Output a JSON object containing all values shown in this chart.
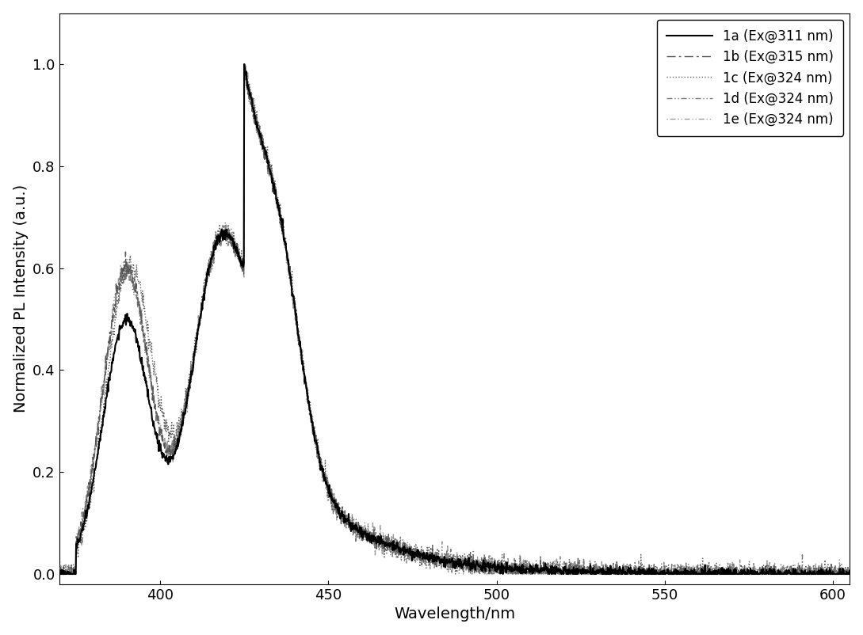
{
  "xlabel": "Wavelength/nm",
  "ylabel": "Normalized PL Intensity (a.u.)",
  "xlim": [
    370,
    605
  ],
  "ylim": [
    -0.02,
    1.1
  ],
  "xticks": [
    400,
    450,
    500,
    550,
    600
  ],
  "yticks": [
    0.0,
    0.2,
    0.4,
    0.6,
    0.8,
    1.0
  ],
  "background_color": "#ffffff",
  "font_size_axis": 14,
  "font_size_ticks": 13,
  "font_size_legend": 12
}
